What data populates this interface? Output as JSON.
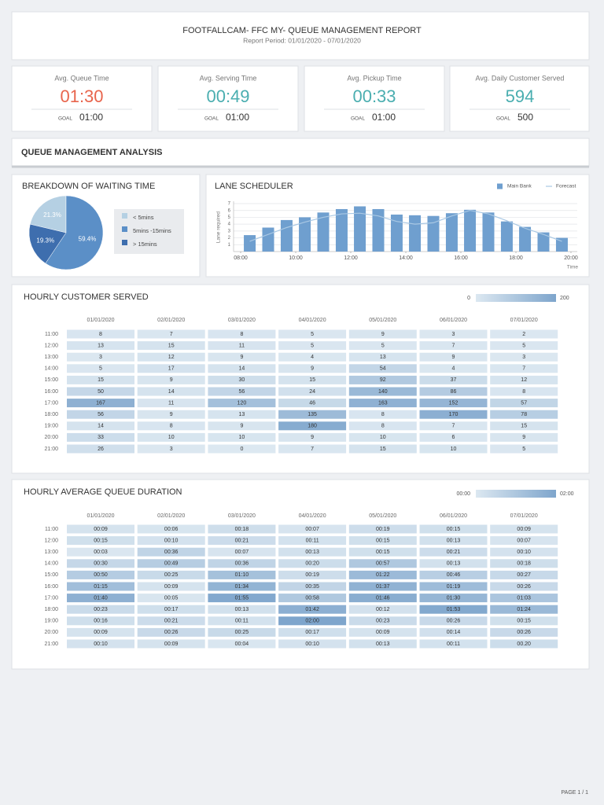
{
  "header": {
    "title": "FOOTFALLCAM- FFC MY- QUEUE MANAGEMENT REPORT",
    "subtitle": "Report Period: 01/01/2020 - 07/01/2020"
  },
  "kpis": [
    {
      "label": "Avg. Queue Time",
      "value": "01:30",
      "goal_label": "GOAL",
      "goal": "01:00",
      "color": "#e8654d"
    },
    {
      "label": "Avg. Serving Time",
      "value": "00:49",
      "goal_label": "GOAL",
      "goal": "01:00",
      "color": "#4aaeb0"
    },
    {
      "label": "Avg. Pickup Time",
      "value": "00:33",
      "goal_label": "GOAL",
      "goal": "01:00",
      "color": "#4aaeb0"
    },
    {
      "label": "Avg. Daily Customer Served",
      "value": 594,
      "goal_label": "GOAL",
      "goal": 500,
      "color": "#4aaeb0"
    }
  ],
  "section": {
    "title": "QUEUE MANAGEMENT ANALYSIS"
  },
  "chart_data": [
    {
      "type": "pie",
      "title": "BREAKDOWN OF WAITING TIME",
      "categories": [
        "< 5mins",
        "5mins -15mins",
        "> 15mins"
      ],
      "values": [
        21.3,
        59.4,
        19.3
      ],
      "value_labels": [
        "21.3%",
        "59.4%",
        "19.3%"
      ],
      "colors": [
        "#b5d0e3",
        "#5b8fc7",
        "#3e6eae"
      ]
    },
    {
      "type": "bar",
      "title": "LANE SCHEDULER",
      "ylabel": "Lane required",
      "xlabel": "Time",
      "x": [
        8.33,
        9,
        9.67,
        10.33,
        11,
        11.67,
        12.33,
        13,
        13.67,
        14.33,
        15,
        15.67,
        16.33,
        17,
        17.67,
        18.33,
        19,
        19.67
      ],
      "xlim": [
        8,
        20
      ],
      "xticks": [
        {
          "value": 8,
          "label": "08:00"
        },
        {
          "value": 10,
          "label": "10:00"
        },
        {
          "value": 12,
          "label": "12:00"
        },
        {
          "value": 14,
          "label": "14:00"
        },
        {
          "value": 16,
          "label": "16:00"
        },
        {
          "value": 18,
          "label": "18:00"
        },
        {
          "value": 20,
          "label": "20:00"
        }
      ],
      "ylim": [
        0,
        7
      ],
      "yticks": [
        1,
        2,
        3,
        4,
        5,
        6,
        7
      ],
      "grid": true,
      "series": [
        {
          "name": "Main Bank",
          "type": "bar",
          "color": "#6f9fcf",
          "values": [
            2.4,
            3.5,
            4.6,
            5.0,
            5.7,
            6.2,
            6.6,
            6.2,
            5.4,
            5.3,
            5.2,
            5.6,
            6.1,
            5.7,
            4.4,
            3.6,
            2.8,
            2.0
          ]
        },
        {
          "name": "Forecast",
          "type": "line",
          "color": "#a9c8e4",
          "values": [
            1.5,
            2.5,
            3.5,
            4.3,
            5.0,
            5.5,
            5.6,
            5.2,
            4.4,
            4.0,
            4.2,
            5.2,
            6.0,
            5.5,
            4.5,
            3.4,
            2.5,
            1.5
          ]
        }
      ]
    }
  ],
  "customer_table": {
    "title": "HOURLY CUSTOMER SERVED",
    "legend_range": [
      0,
      200
    ],
    "colors": [
      "#dce8f1",
      "#7ea5cc"
    ],
    "columns": [
      "01/01/2020",
      "02/01/2020",
      "03/01/2020",
      "04/01/2020",
      "05/01/2020",
      "06/01/2020",
      "07/01/2020"
    ],
    "rows": [
      {
        "label": "11:00",
        "values": [
          8,
          7,
          8,
          5,
          9,
          3,
          2
        ]
      },
      {
        "label": "12:00",
        "values": [
          13,
          15,
          11,
          5,
          5,
          7,
          5
        ]
      },
      {
        "label": "13:00",
        "values": [
          3,
          12,
          9,
          4,
          13,
          9,
          3
        ]
      },
      {
        "label": "14:00",
        "values": [
          5,
          17,
          14,
          9,
          54,
          4,
          7
        ]
      },
      {
        "label": "15:00",
        "values": [
          15,
          9,
          30,
          15,
          92,
          37,
          12
        ]
      },
      {
        "label": "16:00",
        "values": [
          50,
          14,
          56,
          24,
          140,
          86,
          8
        ]
      },
      {
        "label": "17:00",
        "values": [
          167,
          11,
          120,
          46,
          163,
          152,
          57
        ]
      },
      {
        "label": "18:00",
        "values": [
          56,
          9,
          13,
          135,
          8,
          170,
          78
        ]
      },
      {
        "label": "19:00",
        "values": [
          14,
          8,
          9,
          180,
          8,
          7,
          15
        ]
      },
      {
        "label": "20:00",
        "values": [
          33,
          10,
          10,
          9,
          10,
          6,
          9
        ]
      },
      {
        "label": "21:00",
        "values": [
          26,
          3,
          0,
          7,
          15,
          10,
          5
        ]
      }
    ]
  },
  "queue_table": {
    "title": "HOURLY AVERAGE QUEUE DURATION",
    "legend_range": [
      "00:00",
      "02:00"
    ],
    "colors": [
      "#dce8f1",
      "#7ea5cc"
    ],
    "columns": [
      "01/01/2020",
      "02/01/2020",
      "03/01/2020",
      "04/01/2020",
      "05/01/2020",
      "06/01/2020",
      "07/01/2020"
    ],
    "rows": [
      {
        "label": "11:00",
        "values": [
          "00:09",
          "00:06",
          "00:18",
          "00:07",
          "00:19",
          "00:15",
          "00:09"
        ]
      },
      {
        "label": "12:00",
        "values": [
          "00:15",
          "00:10",
          "00:21",
          "00:11",
          "00:15",
          "00:13",
          "00:07"
        ]
      },
      {
        "label": "13:00",
        "values": [
          "00:03",
          "00:36",
          "00:07",
          "00:13",
          "00:15",
          "00:21",
          "00:10"
        ]
      },
      {
        "label": "14:00",
        "values": [
          "00:30",
          "00:49",
          "00:36",
          "00:20",
          "00:57",
          "00:13",
          "00:18"
        ]
      },
      {
        "label": "15:00",
        "values": [
          "00:50",
          "00:25",
          "01:10",
          "00:19",
          "01:22",
          "00:46",
          "00:27"
        ]
      },
      {
        "label": "16:00",
        "values": [
          "01:15",
          "00:09",
          "01:34",
          "00:35",
          "01:37",
          "01:19",
          "00:26"
        ]
      },
      {
        "label": "17:00",
        "values": [
          "01:40",
          "00:05",
          "01:55",
          "00:58",
          "01:46",
          "01:30",
          "01:03"
        ]
      },
      {
        "label": "18:00",
        "values": [
          "00:23",
          "00:17",
          "00:13",
          "01:42",
          "00:12",
          "01:53",
          "01:24"
        ]
      },
      {
        "label": "19:00",
        "values": [
          "00:16",
          "00:21",
          "00:11",
          "02:00",
          "00:23",
          "00:26",
          "00:15"
        ]
      },
      {
        "label": "20:00",
        "values": [
          "00:09",
          "00:26",
          "00:25",
          "00:17",
          "00:09",
          "00:14",
          "00:26"
        ]
      },
      {
        "label": "21:00",
        "values": [
          "00:10",
          "00:09",
          "00:04",
          "00:10",
          "00:13",
          "00:11",
          "00.20"
        ]
      }
    ]
  },
  "footer": {
    "page": "PAGE 1 / 1"
  }
}
